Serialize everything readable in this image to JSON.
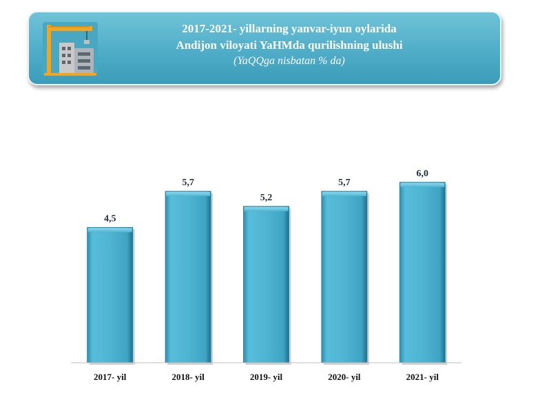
{
  "header": {
    "title_line1": "2017-2021- yillarning yanvar-iyun oylarida",
    "title_line2": "Andijon viloyati YaHMda qurilishning ulushi",
    "subtitle": "(YaQQga nisbatan % da)",
    "icon": "construction-crane-building-icon",
    "background_color": "#4fadc8"
  },
  "chart_data": {
    "type": "bar",
    "categories": [
      "2017- yil",
      "2018- yil",
      "2019- yil",
      "2020- yil",
      "2021- yil"
    ],
    "values": [
      4.5,
      5.7,
      5.2,
      5.7,
      6.0
    ],
    "value_labels": [
      "4,5",
      "5,7",
      "5,2",
      "5,7",
      "6,0"
    ],
    "title": "2017-2021- yillarning yanvar-iyun oylarida Andijon viloyati YaHMda qurilishning ulushi",
    "subtitle": "(YaQQga nisbatan % da)",
    "xlabel": "",
    "ylabel": "",
    "ylim": [
      0,
      6.5
    ],
    "grid": false,
    "legend": "none",
    "bar_color": "#4fb4d2"
  }
}
